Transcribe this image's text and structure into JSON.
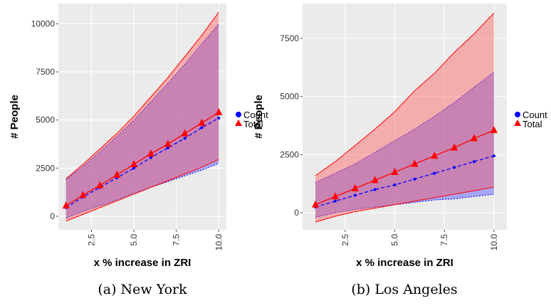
{
  "chart_data": [
    {
      "type": "line",
      "caption": "(a) New York",
      "xlabel": "x % increase in ZRI",
      "ylabel": "# People",
      "x": [
        1,
        2,
        3,
        4,
        5,
        6,
        7,
        8,
        9,
        10
      ],
      "xlim": [
        0.55,
        10.45
      ],
      "xticks": [
        2.5,
        {
          "value": 5,
          "label": "5.0"
        },
        7.5,
        {
          "value": 10,
          "label": "10.0"
        }
      ],
      "ylim": [
        -700,
        11050
      ],
      "yticks": [
        0,
        2500,
        5000,
        7500,
        10000
      ],
      "grid": true,
      "series": [
        {
          "name": "Count",
          "color": "#0000ff",
          "marker": "circle",
          "values": [
            450,
            1000,
            1500,
            2000,
            2500,
            3050,
            3550,
            4050,
            4600,
            5100
          ],
          "lower": [
            -100,
            250,
            550,
            850,
            1200,
            1500,
            1800,
            2100,
            2400,
            2750
          ],
          "upper": [
            1900,
            2600,
            3350,
            4150,
            5000,
            5950,
            6900,
            7900,
            8950,
            10000
          ]
        },
        {
          "name": "Total",
          "color": "#ff0000",
          "marker": "triangle",
          "values": [
            550,
            1100,
            1600,
            2150,
            2700,
            3250,
            3750,
            4300,
            4850,
            5400
          ],
          "lower": [
            -250,
            100,
            450,
            800,
            1150,
            1500,
            1850,
            2200,
            2550,
            2950
          ],
          "upper": [
            1950,
            2700,
            3500,
            4300,
            5200,
            6200,
            7200,
            8300,
            9400,
            10600
          ]
        }
      ]
    },
    {
      "type": "line",
      "caption": "(b) Los Angeles",
      "xlabel": "x % increase in ZRI",
      "ylabel": "# People",
      "x": [
        1,
        2,
        3,
        4,
        5,
        6,
        7,
        8,
        9,
        10
      ],
      "xlim": [
        0.35,
        10.65
      ],
      "xticks": [
        2.5,
        {
          "value": 5,
          "label": "5.0"
        },
        7.5,
        {
          "value": 10,
          "label": "10.0"
        }
      ],
      "ylim": [
        -730,
        9000
      ],
      "yticks": [
        0,
        2500,
        5000,
        7500
      ],
      "grid": true,
      "series": [
        {
          "name": "Count",
          "color": "#0000ff",
          "marker": "circle",
          "values": [
            250,
            500,
            750,
            1000,
            1200,
            1450,
            1700,
            1950,
            2200,
            2450
          ],
          "lower": [
            -200,
            0,
            150,
            250,
            350,
            450,
            550,
            600,
            700,
            800
          ],
          "upper": [
            1300,
            1700,
            2100,
            2600,
            3100,
            3600,
            4150,
            4750,
            5400,
            6050
          ]
        },
        {
          "name": "Total",
          "color": "#ff0000",
          "marker": "triangle",
          "values": [
            350,
            700,
            1050,
            1400,
            1750,
            2100,
            2450,
            2800,
            3200,
            3550
          ],
          "lower": [
            -400,
            -150,
            50,
            200,
            350,
            500,
            650,
            800,
            950,
            1100
          ],
          "upper": [
            1600,
            2200,
            2900,
            3600,
            4350,
            5250,
            6000,
            6900,
            7700,
            8600
          ]
        }
      ]
    }
  ]
}
